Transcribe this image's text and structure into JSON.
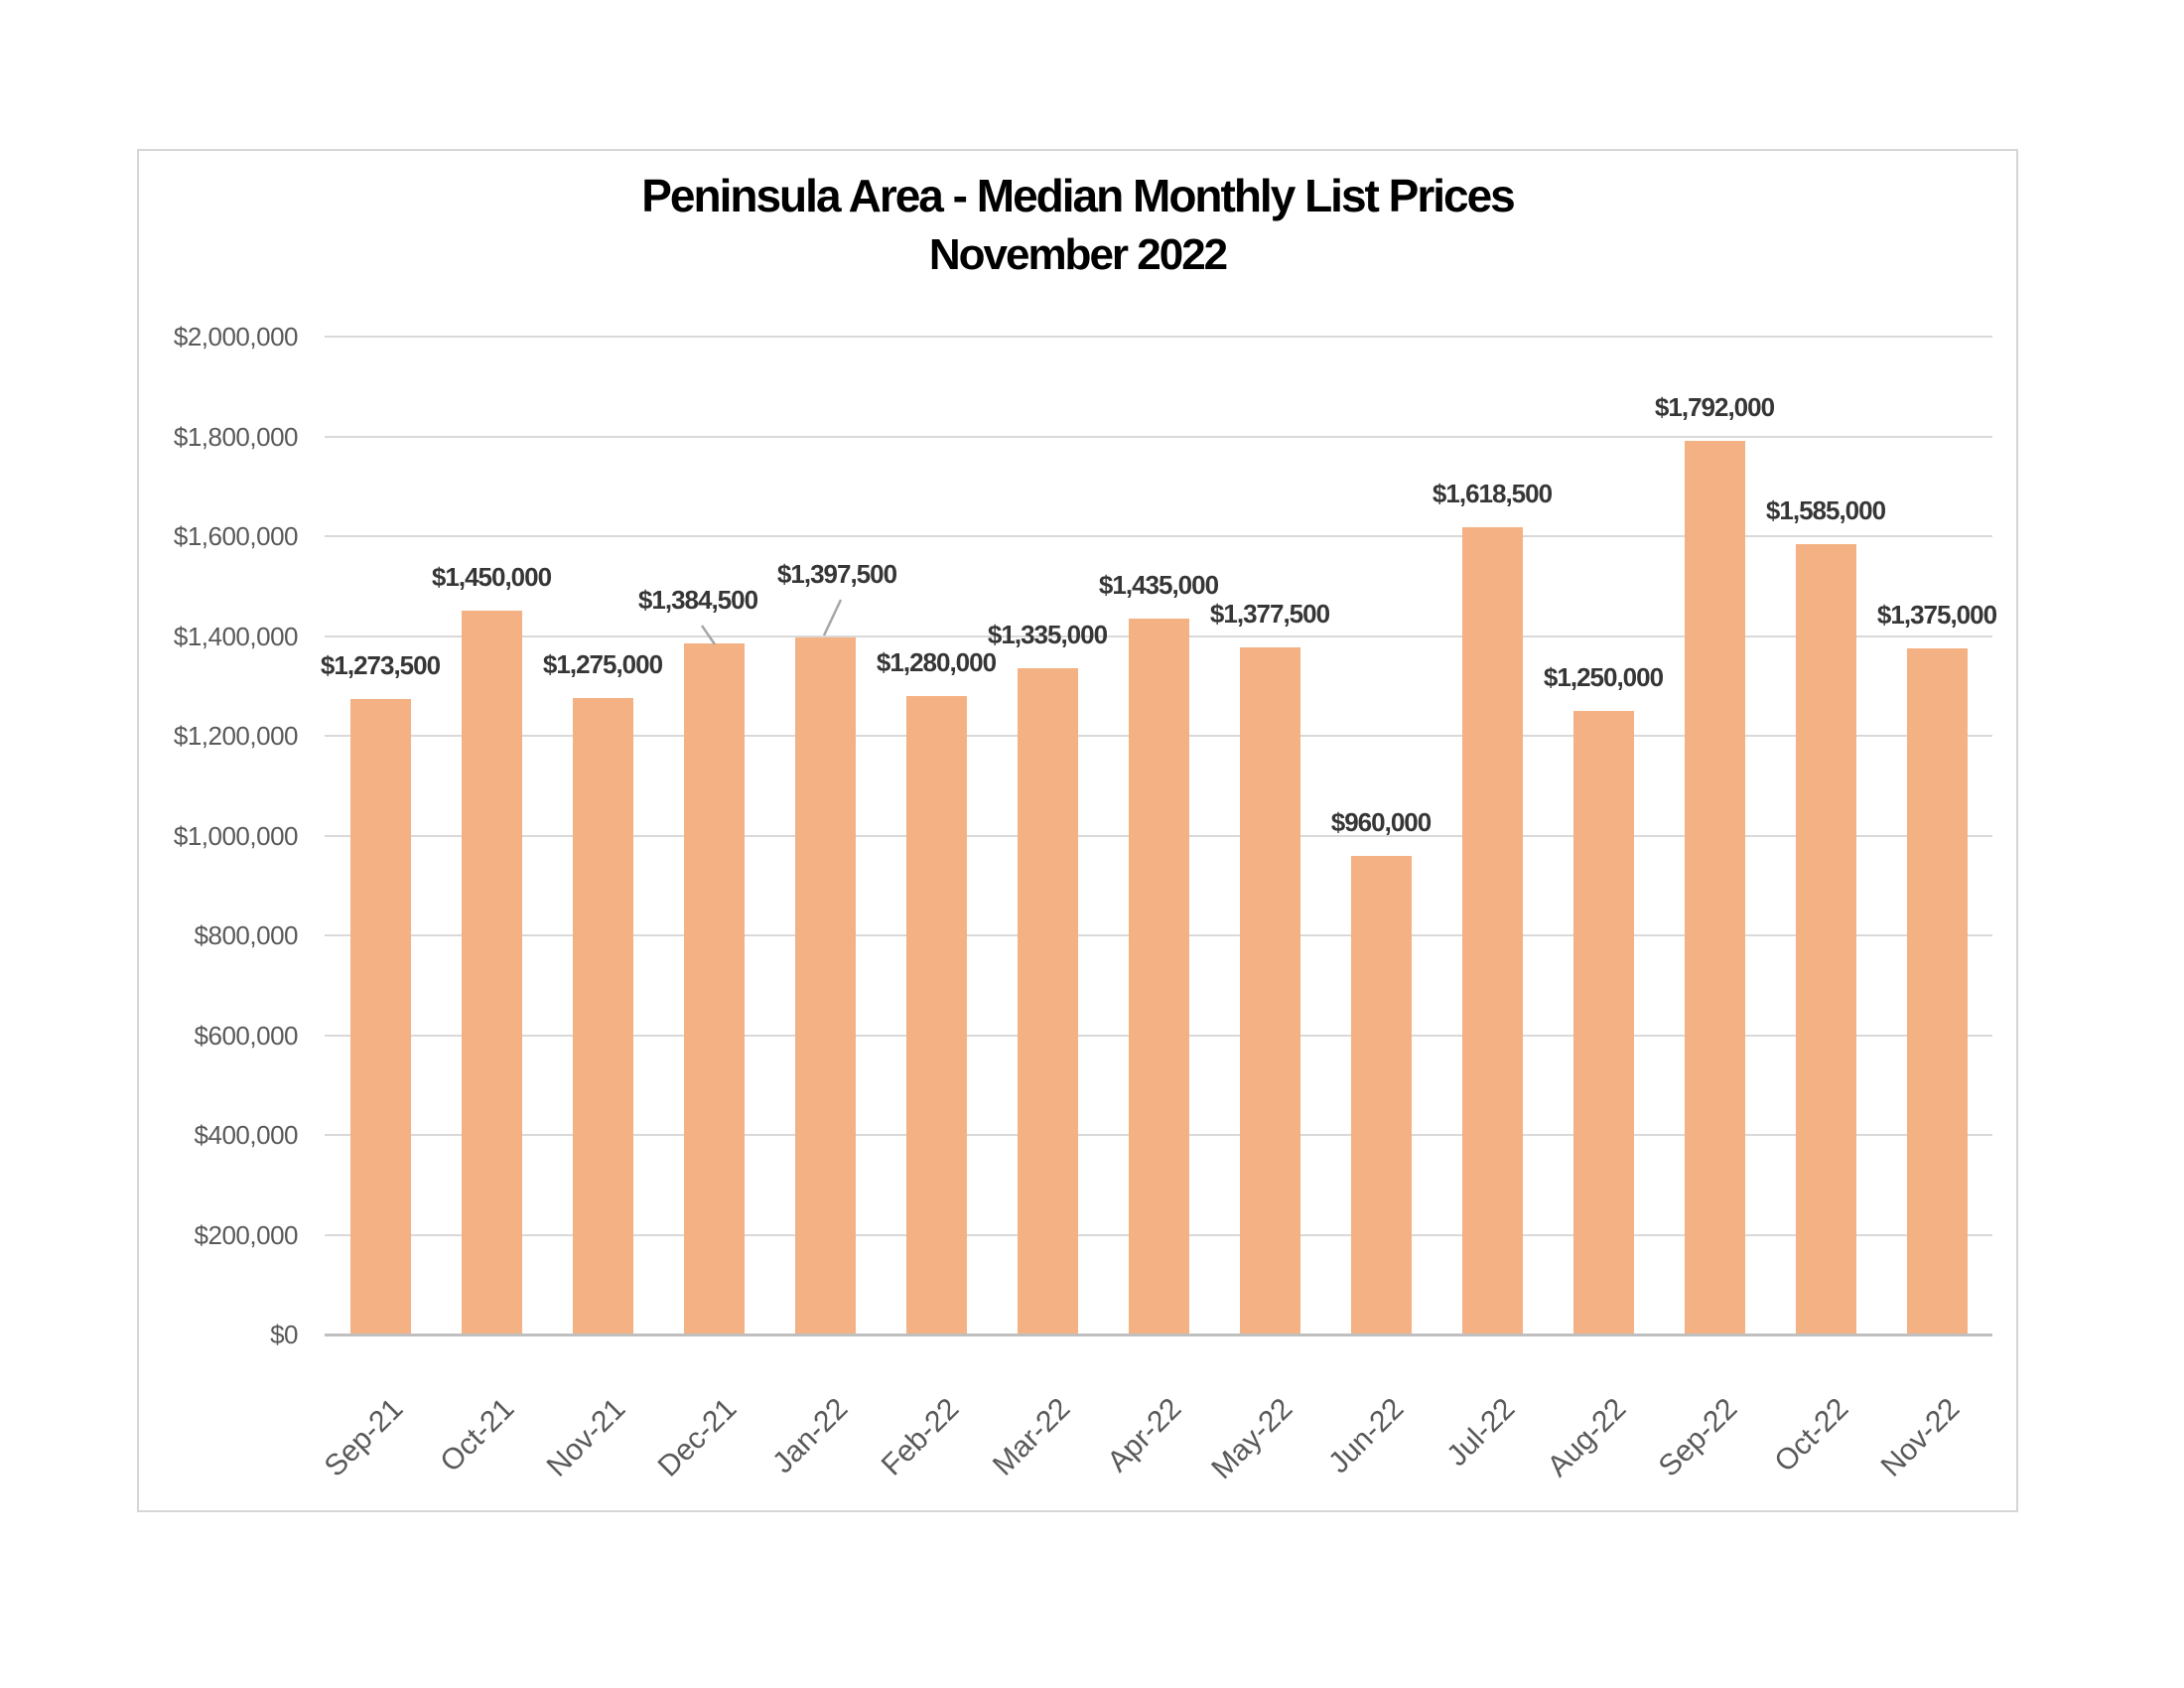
{
  "page": {
    "background": "#ffffff"
  },
  "chart": {
    "title": "Peninsula Area - Median Monthly List Prices",
    "subtitle": "November 2022",
    "colors": {
      "bar_fill": "#F4B183",
      "gridline": "#D9D9D9",
      "axis_line": "#BFBFBF",
      "axis_text": "#595959",
      "data_label_text": "#363636",
      "title_text": "#000000",
      "leader_line": "#A6A6A6",
      "frame_border": "#D6D6D6"
    }
  },
  "chart_data": {
    "type": "bar",
    "title": "Peninsula Area - Median Monthly List Prices",
    "subtitle": "November 2022",
    "xlabel": "",
    "ylabel": "",
    "categories": [
      "Sep-21",
      "Oct-21",
      "Nov-21",
      "Dec-21",
      "Jan-22",
      "Feb-22",
      "Mar-22",
      "Apr-22",
      "May-22",
      "Jun-22",
      "Jul-22",
      "Aug-22",
      "Sep-22",
      "Oct-22",
      "Nov-22"
    ],
    "values": [
      1273500,
      1450000,
      1275000,
      1384500,
      1397500,
      1280000,
      1335000,
      1435000,
      1377500,
      960000,
      1618500,
      1250000,
      1792000,
      1585000,
      1375000
    ],
    "value_labels": [
      "$1,273,500",
      "$1,450,000",
      "$1,275,000",
      "$1,384,500",
      "$1,397,500",
      "$1,280,000",
      "$1,335,000",
      "$1,435,000",
      "$1,377,500",
      "$960,000",
      "$1,618,500",
      "$1,250,000",
      "$1,792,000",
      "$1,585,000",
      "$1,375,000"
    ],
    "ylim": [
      0,
      2000000
    ],
    "ytick_interval": 200000,
    "ytick_labels_top_to_bottom": [
      "$2,000,000",
      "$1,800,000",
      "$1,600,000",
      "$1,400,000",
      "$1,200,000",
      "$1,000,000",
      "$800,000",
      "$600,000",
      "$400,000",
      "$200,000",
      "$0"
    ],
    "grid": true,
    "legend": "none",
    "x_tick_rotation_deg": 45,
    "label_overrides": {
      "Dec-21": {
        "cx": 376,
        "label_bottom": 281,
        "leader": [
          380,
          291,
          393,
          310
        ]
      },
      "Jan-22": {
        "cx": 516,
        "label_bottom": 255,
        "leader": [
          520,
          265,
          503,
          301
        ]
      }
    }
  }
}
